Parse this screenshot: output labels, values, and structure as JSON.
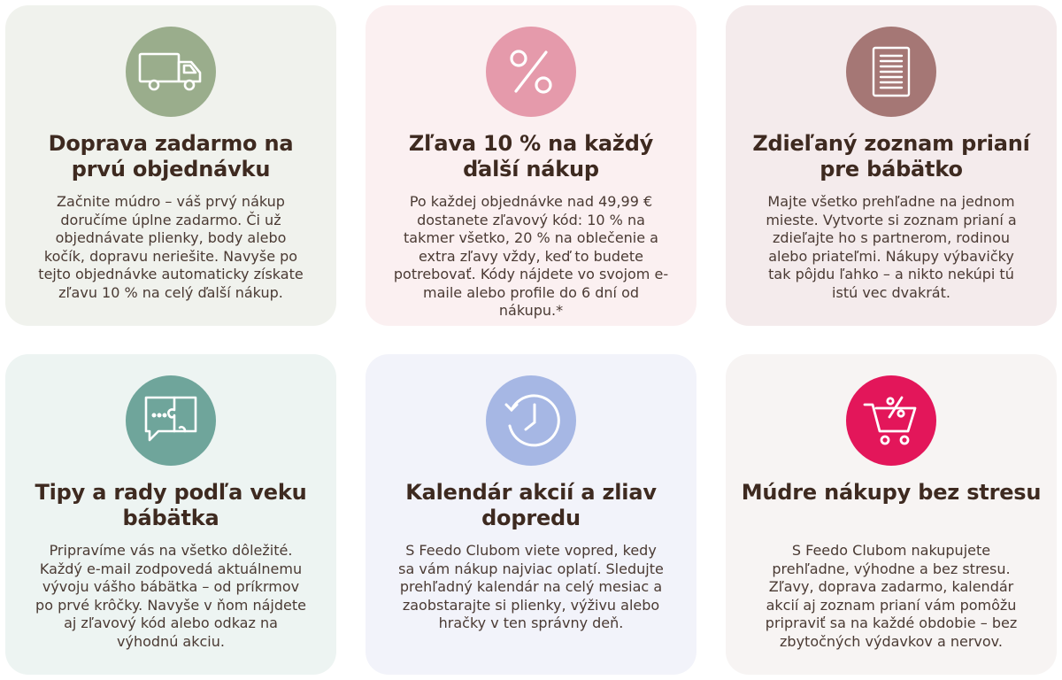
{
  "cards": [
    {
      "icon": "delivery-truck-icon",
      "title": "Doprava zadarmo na prvú objednávku",
      "text": "Začnite múdro – váš prvý nákup doručíme úplne zadarmo. Či už objednávate plienky, body alebo kočík, dopravu neriešite. Navyše po tejto objednávke automaticky získate zľavu 10 % na celý ďalší nákup."
    },
    {
      "icon": "percent-icon",
      "title": "Zľava 10 % na každý ďalší nákup",
      "text": "Po každej objednávke nad 49,99 € dostanete zľavový kód: 10 % na takmer všetko, 20 % na oblečenie a extra zľavy vždy, keď to budete potrebovať. Kódy nájdete vo svojom e-maile alebo profile do 6 dní od nákupu.*"
    },
    {
      "icon": "wishlist-document-icon",
      "title": "Zdieľaný zoznam prianí pre bábätko",
      "text": "Majte všetko prehľadne na jednom mieste. Vytvorte si zoznam prianí a zdieľajte ho s partnerom, rodinou alebo priateľmi. Nákupy výbavičky tak pôjdu ľahko – a nikto nekúpi tú istú vec dvakrát."
    },
    {
      "icon": "puzzle-chat-icon",
      "title": "Tipy a rady podľa veku bábätka",
      "text": "Pripravíme vás na všetko dôležité. Každý e-mail zodpovedá aktuálnemu vývoju vášho bábätka – od príkrmov po prvé krôčky. Navyše v ňom nájdete aj zľavový kód alebo odkaz na výhodnú akciu."
    },
    {
      "icon": "clock-icon",
      "title": "Kalendár akcií a zliav dopredu",
      "text": "S Feedo Clubom viete vopred, kedy sa vám nákup najviac oplatí. Sledujte prehľadný kalendár na celý mesiac a zaobstarajte si plienky, výživu alebo hračky v ten správny deň."
    },
    {
      "icon": "discount-cart-icon",
      "title": "Múdre nákupy bez stresu",
      "text": "S Feedo Clubom nakupujete prehľadne, výhodne a bez stresu. Zľavy, doprava zadarmo, kalendár akcií aj zoznam prianí vám pomôžu pripraviť sa na každé obdobie – bez zbytočných výdavkov a nervov."
    }
  ],
  "colors": {
    "title": "#3e2a20",
    "icon_green": "#9aad8c",
    "icon_pink": "#e59aab",
    "icon_mauve": "#a57775",
    "icon_teal": "#6fa59b",
    "icon_periwinkle": "#a6b7e4",
    "icon_magenta": "#e3165a"
  }
}
